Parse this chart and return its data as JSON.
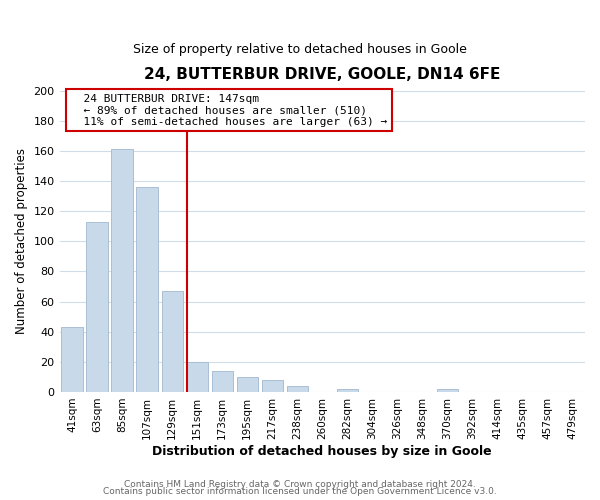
{
  "title": "24, BUTTERBUR DRIVE, GOOLE, DN14 6FE",
  "subtitle": "Size of property relative to detached houses in Goole",
  "xlabel": "Distribution of detached houses by size in Goole",
  "ylabel": "Number of detached properties",
  "bar_labels": [
    "41sqm",
    "63sqm",
    "85sqm",
    "107sqm",
    "129sqm",
    "151sqm",
    "173sqm",
    "195sqm",
    "217sqm",
    "238sqm",
    "260sqm",
    "282sqm",
    "304sqm",
    "326sqm",
    "348sqm",
    "370sqm",
    "392sqm",
    "414sqm",
    "435sqm",
    "457sqm",
    "479sqm"
  ],
  "bar_values": [
    43,
    113,
    161,
    136,
    67,
    20,
    14,
    10,
    8,
    4,
    0,
    2,
    0,
    0,
    0,
    2,
    0,
    0,
    0,
    0,
    0
  ],
  "bar_color": "#c8daea",
  "bar_edgecolor": "#aabfd4",
  "vline_color": "#cc0000",
  "ylim": [
    0,
    200
  ],
  "yticks": [
    0,
    20,
    40,
    60,
    80,
    100,
    120,
    140,
    160,
    180,
    200
  ],
  "annotation_title": "24 BUTTERBUR DRIVE: 147sqm",
  "annotation_line1": "← 89% of detached houses are smaller (510)",
  "annotation_line2": "11% of semi-detached houses are larger (63) →",
  "footer1": "Contains HM Land Registry data © Crown copyright and database right 2024.",
  "footer2": "Contains public sector information licensed under the Open Government Licence v3.0.",
  "bg_color": "#ffffff",
  "plot_bg_color": "#ffffff",
  "grid_color": "#d0dce8",
  "annotation_edgecolor": "#cc0000",
  "annotation_facecolor": "#ffffff"
}
